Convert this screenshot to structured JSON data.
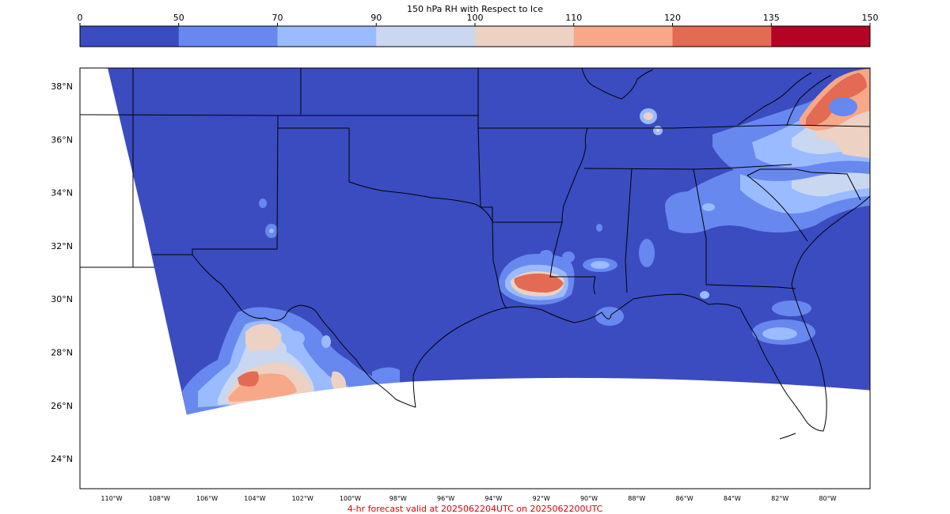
{
  "colorbar": {
    "title": "150 hPa RH with Respect to Ice",
    "bins": [
      {
        "from": 0,
        "to": 50,
        "color": "#3b4cc0"
      },
      {
        "from": 50,
        "to": 70,
        "color": "#6788ee"
      },
      {
        "from": 70,
        "to": 90,
        "color": "#9abbff"
      },
      {
        "from": 90,
        "to": 100,
        "color": "#c9d7f0"
      },
      {
        "from": 100,
        "to": 110,
        "color": "#edd1c2"
      },
      {
        "from": 110,
        "to": 120,
        "color": "#f7a889"
      },
      {
        "from": 120,
        "to": 135,
        "color": "#e36a53"
      },
      {
        "from": 135,
        "to": 150,
        "color": "#b40426"
      }
    ],
    "tick_labels": [
      "0",
      "50",
      "70",
      "90",
      "100",
      "110",
      "120",
      "135",
      "150"
    ]
  },
  "map": {
    "lat_labels": [
      "38°N",
      "36°N",
      "34°N",
      "32°N",
      "30°N",
      "28°N",
      "26°N",
      "24°N"
    ],
    "lon_labels": [
      "110°W",
      "108°W",
      "106°W",
      "104°W",
      "102°W",
      "100°W",
      "98°W",
      "96°W",
      "94°W",
      "92°W",
      "90°W",
      "88°W",
      "86°W",
      "84°W",
      "82°W",
      "80°W"
    ],
    "no_data_color": "#ffffff",
    "border_color": "#000000"
  },
  "footer": {
    "text": "4-hr forecast valid at 2025062204UTC on 2025062200UTC"
  }
}
